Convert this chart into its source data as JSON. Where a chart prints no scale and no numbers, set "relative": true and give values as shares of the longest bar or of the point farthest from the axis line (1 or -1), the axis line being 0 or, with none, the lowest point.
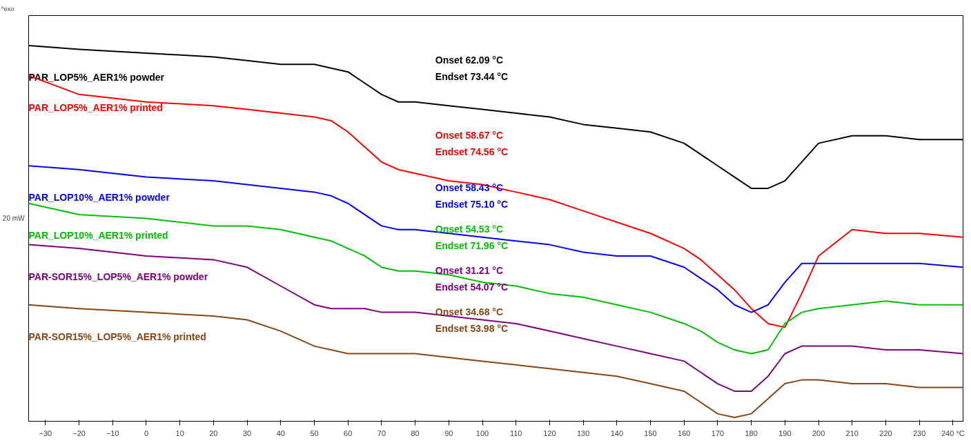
{
  "chart_data": {
    "type": "line",
    "relative": true,
    "grid": false,
    "marker": "none",
    "line_style": "solid",
    "xlim": [
      -35,
      243
    ],
    "xticks": [
      -30,
      -20,
      -10,
      0,
      10,
      20,
      30,
      40,
      50,
      60,
      70,
      80,
      90,
      100,
      110,
      120,
      130,
      140,
      150,
      160,
      170,
      180,
      190,
      200,
      210,
      220,
      230,
      {
        "value": 240,
        "label": "240 °C"
      }
    ],
    "x": [
      -35,
      -20,
      0,
      20,
      30,
      40,
      50,
      55,
      60,
      65,
      70,
      75,
      80,
      90,
      100,
      110,
      120,
      130,
      140,
      150,
      160,
      165,
      170,
      175,
      180,
      185,
      190,
      195,
      200,
      210,
      220,
      230,
      243
    ],
    "series": [
      {
        "name": "PAR_LOP5%_AER1% powder",
        "color": "#000000",
        "values": [
          1.0,
          0.99,
          0.98,
          0.97,
          0.96,
          0.95,
          0.95,
          0.94,
          0.93,
          0.9,
          0.87,
          0.85,
          0.85,
          0.84,
          0.83,
          0.82,
          0.81,
          0.79,
          0.78,
          0.77,
          0.74,
          0.71,
          0.68,
          0.65,
          0.62,
          0.62,
          0.64,
          0.69,
          0.74,
          0.76,
          0.76,
          0.75,
          0.75
        ]
      },
      {
        "name": "PAR_LOP5%_AER1% printed",
        "color": "#ff0000",
        "values": [
          0.92,
          0.87,
          0.85,
          0.84,
          0.83,
          0.82,
          0.81,
          0.8,
          0.77,
          0.73,
          0.69,
          0.67,
          0.66,
          0.64,
          0.63,
          0.61,
          0.59,
          0.56,
          0.53,
          0.5,
          0.46,
          0.43,
          0.39,
          0.35,
          0.3,
          0.26,
          0.25,
          0.34,
          0.44,
          0.51,
          0.5,
          0.5,
          0.49
        ]
      },
      {
        "name": "PAR_LOP10%_AER1% powder",
        "color": "#0000ff",
        "values": [
          0.68,
          0.67,
          0.65,
          0.64,
          0.63,
          0.62,
          0.61,
          0.6,
          0.58,
          0.55,
          0.52,
          0.51,
          0.51,
          0.5,
          0.49,
          0.48,
          0.47,
          0.45,
          0.44,
          0.44,
          0.41,
          0.38,
          0.35,
          0.31,
          0.29,
          0.31,
          0.37,
          0.42,
          0.42,
          0.42,
          0.42,
          0.42,
          0.41
        ]
      },
      {
        "name": "PAR_LOP10%_AER1% printed",
        "color": "#00c000",
        "values": [
          0.58,
          0.55,
          0.54,
          0.52,
          0.52,
          0.51,
          0.49,
          0.48,
          0.46,
          0.44,
          0.41,
          0.4,
          0.4,
          0.39,
          0.37,
          0.36,
          0.34,
          0.33,
          0.31,
          0.29,
          0.26,
          0.24,
          0.21,
          0.19,
          0.18,
          0.19,
          0.26,
          0.29,
          0.3,
          0.31,
          0.32,
          0.31,
          0.31
        ]
      },
      {
        "name": "PAR-SOR15%_LOP5%_AER1% powder",
        "color": "#800080",
        "values": [
          0.47,
          0.46,
          0.44,
          0.43,
          0.41,
          0.36,
          0.31,
          0.3,
          0.3,
          0.3,
          0.29,
          0.29,
          0.29,
          0.28,
          0.27,
          0.26,
          0.24,
          0.22,
          0.2,
          0.18,
          0.16,
          0.13,
          0.1,
          0.08,
          0.08,
          0.12,
          0.18,
          0.2,
          0.2,
          0.2,
          0.19,
          0.19,
          0.18
        ]
      },
      {
        "name": "PAR-SOR15%_LOP5%_AER1% printed",
        "color": "#8b4513",
        "values": [
          0.31,
          0.3,
          0.29,
          0.28,
          0.27,
          0.24,
          0.2,
          0.19,
          0.18,
          0.18,
          0.18,
          0.18,
          0.18,
          0.17,
          0.16,
          0.15,
          0.14,
          0.13,
          0.12,
          0.1,
          0.08,
          0.05,
          0.02,
          0.01,
          0.02,
          0.06,
          0.1,
          0.11,
          0.11,
          0.1,
          0.1,
          0.09,
          0.09
        ]
      }
    ],
    "annotations": [
      "^exo",
      "20 mW",
      "Onset    62.09 °C\nEndset  73.44 °C",
      "Onset    58.67 °C\nEndset  74.56 °C",
      "Onset    58.43 °C\nEndset  75.10 °C",
      "Onset    54.53 °C\nEndset  71.96 °C",
      "Onset    31.21 °C\nEndset  54.07 °C",
      "Onset    34.68 °C\nEndset  53.98 °C"
    ]
  }
}
